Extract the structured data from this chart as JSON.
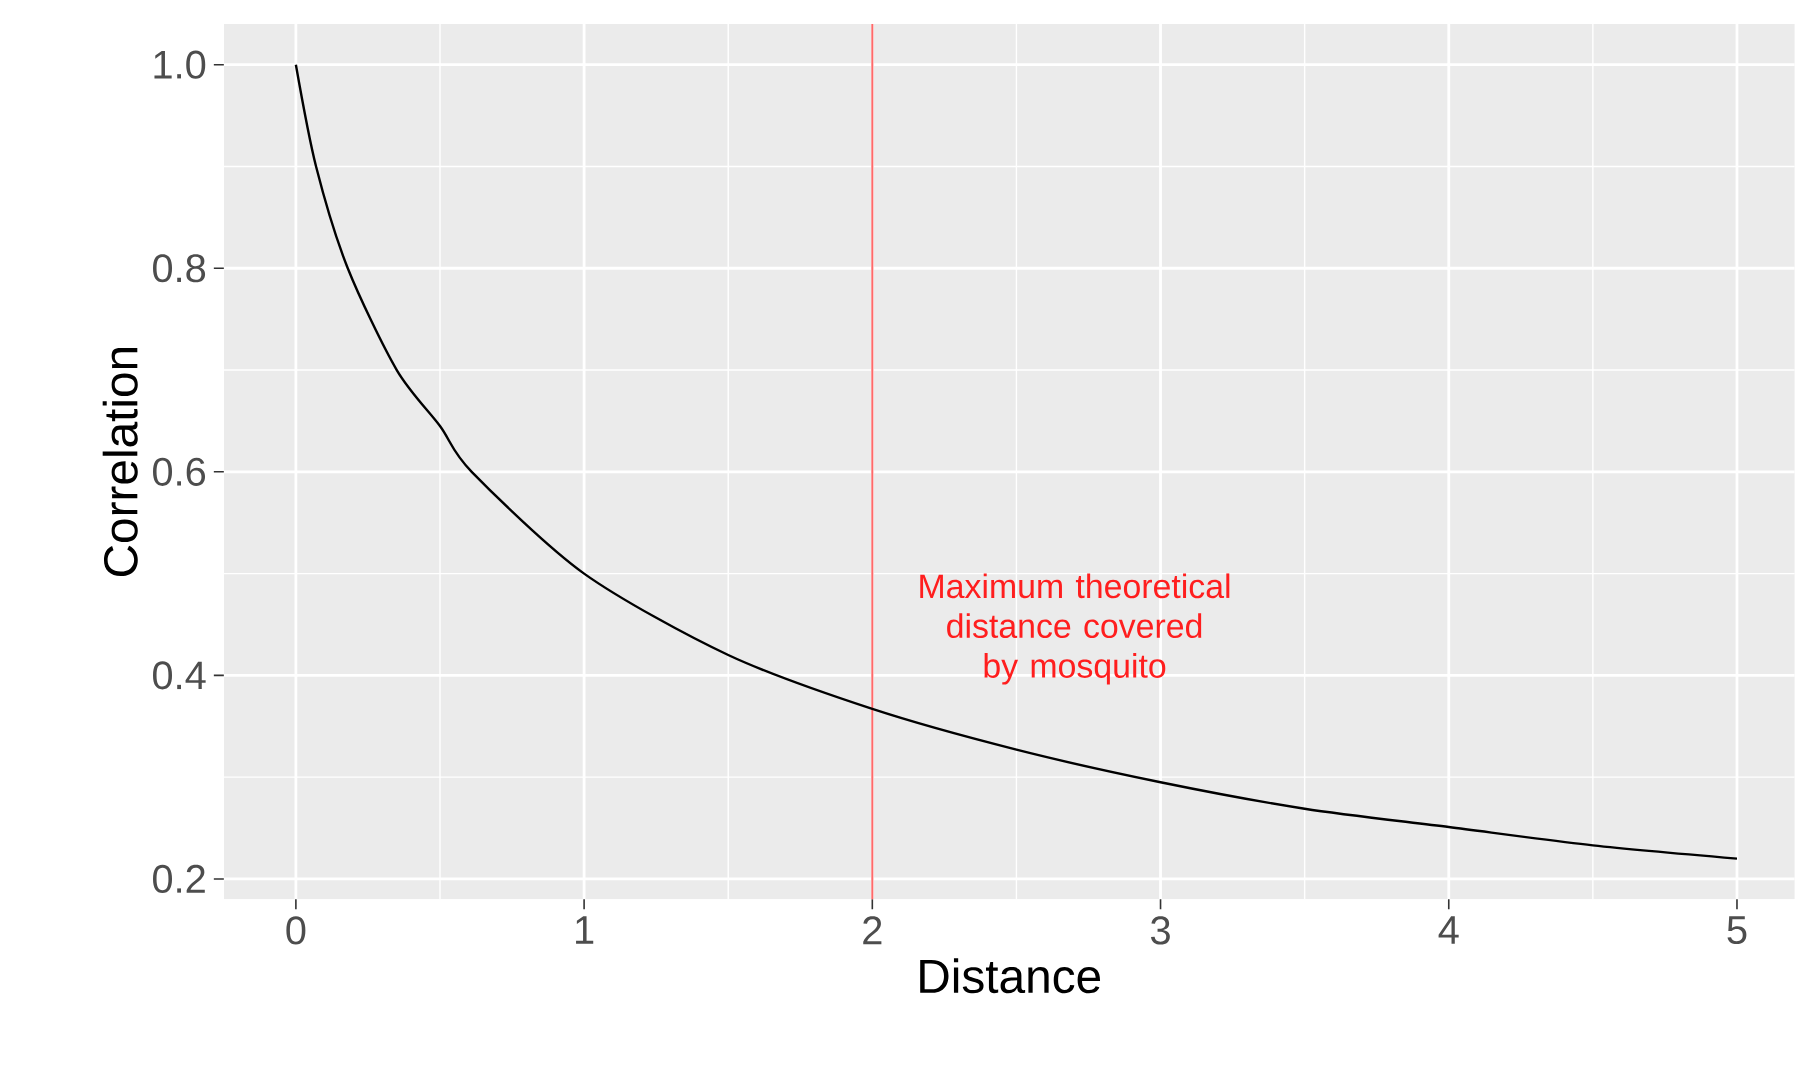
{
  "chart_data": {
    "type": "line",
    "xlabel": "Distance",
    "ylabel": "Correlation",
    "xlim": [
      -0.25,
      5.2
    ],
    "ylim": [
      0.18,
      1.04
    ],
    "xticks": [
      0,
      1,
      2,
      3,
      4,
      5
    ],
    "yticks": [
      0.2,
      0.4,
      0.6,
      0.8,
      {
        "value": 1.0,
        "label": "1.0"
      }
    ],
    "grid": true,
    "marker": "none",
    "line_style": "solid",
    "series": [
      {
        "color": "#000000",
        "x": [
          0,
          0.07,
          0.18,
          0.35,
          0.5,
          0.61,
          1,
          1.5,
          2,
          2.5,
          3,
          3.5,
          4,
          4.5,
          5
        ],
        "values": [
          1.0,
          0.9,
          0.8,
          0.7,
          0.645,
          0.6,
          0.5,
          0.42,
          0.367,
          0.327,
          0.295,
          0.269,
          0.251,
          0.233,
          0.22
        ]
      }
    ],
    "ref_lines": [
      {
        "axis": "x",
        "value": 2,
        "label": "Maximum theoretical distance covered by mosquito",
        "color": "#ff6a6a"
      }
    ]
  }
}
